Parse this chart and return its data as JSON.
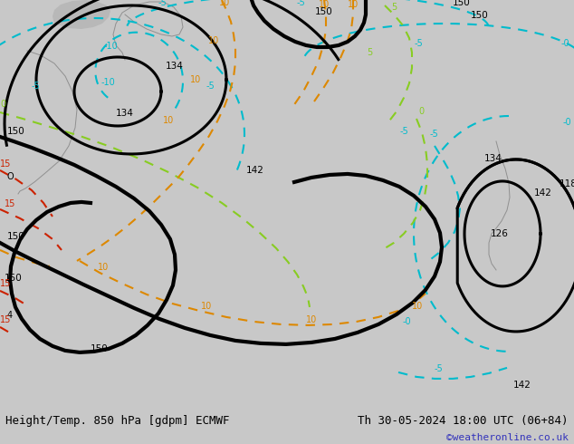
{
  "title_left": "Height/Temp. 850 hPa [gdpm] ECMWF",
  "title_right": "Th 30-05-2024 18:00 UTC (06+84)",
  "credit": "©weatheronline.co.uk",
  "bg_color": "#c8c8c8",
  "map_green": "#b8d9a0",
  "sea_gray": "#c8c8c8",
  "bottom_bar_color": "#e0e0e0",
  "credit_color": "#3333bb",
  "figsize": [
    6.34,
    4.9
  ],
  "dpi": 100,
  "black_lw": 2.2,
  "thin_lw": 1.5,
  "cyan": "#00bbcc",
  "orange": "#dd8800",
  "lime": "#88cc22",
  "red": "#cc2200"
}
